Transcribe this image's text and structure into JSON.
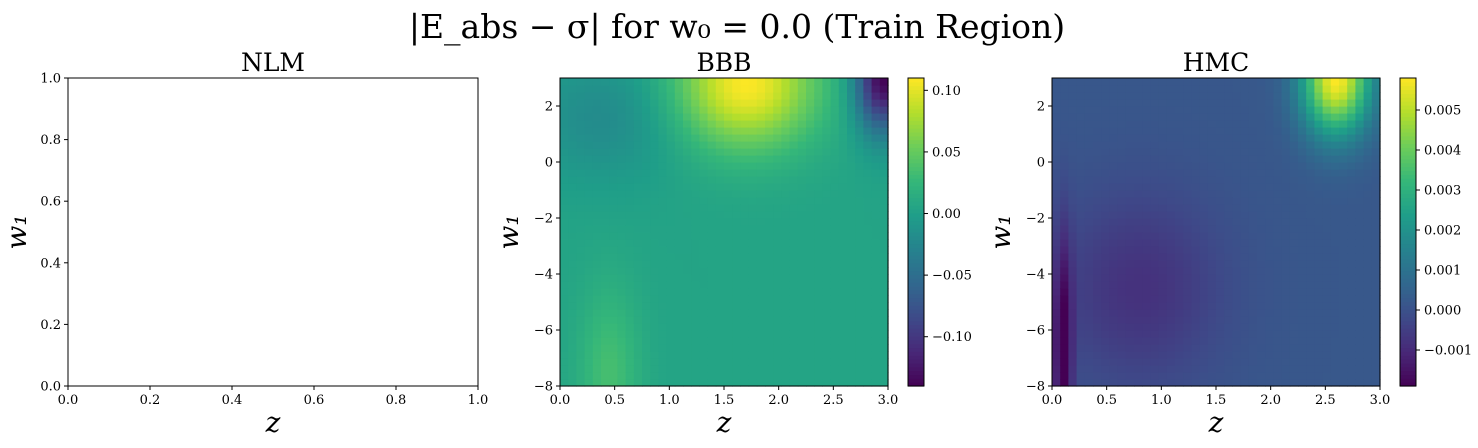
{
  "figure": {
    "title": "|E_abs − σ| for w₀ = 0.0 (Train Region)"
  },
  "chart_data": [
    {
      "type": "heatmap",
      "panel": "NLM",
      "title": "NLM",
      "xlabel": "z",
      "ylabel": "w₁",
      "xlim": [
        0.0,
        1.0
      ],
      "ylim": [
        0.0,
        1.0
      ],
      "xticks": [
        "0.0",
        "0.2",
        "0.4",
        "0.6",
        "0.8",
        "1.0"
      ],
      "yticks": [
        "0.0",
        "0.2",
        "0.4",
        "0.6",
        "0.8",
        "1.0"
      ],
      "empty": true,
      "colorbar": null
    },
    {
      "type": "heatmap",
      "panel": "BBB",
      "title": "BBB",
      "xlabel": "z",
      "ylabel": "w₁",
      "xlim": [
        0.0,
        3.0
      ],
      "ylim": [
        -8,
        3
      ],
      "xticks": [
        "0.0",
        "0.5",
        "1.0",
        "1.5",
        "2.0",
        "2.5",
        "3.0"
      ],
      "yticks": [
        "2",
        "0",
        "−2",
        "−4",
        "−6",
        "−8"
      ],
      "colormap": "viridis",
      "zrange": [
        -0.14,
        0.11
      ],
      "colorbar": {
        "ticks": [
          0.1,
          0.05,
          0.0,
          -0.05,
          -0.1
        ],
        "tick_labels": [
          "0.10",
          "0.05",
          "0.00",
          "−0.05",
          "−0.10"
        ]
      },
      "features": [
        {
          "x": 1.7,
          "y": 2.8,
          "value": 0.11,
          "sx": 0.45,
          "sy": 1.6
        },
        {
          "x": 2.95,
          "y": 3.0,
          "value": -0.14,
          "sx": 0.17,
          "sy": 1.3
        },
        {
          "x": 0.45,
          "y": -7.5,
          "value": 0.035,
          "sx": 0.2,
          "sy": 2.2
        },
        {
          "x": 0.4,
          "y": 1.6,
          "value": -0.02,
          "sx": 0.5,
          "sy": 1.6
        }
      ],
      "base_value": 0.005
    },
    {
      "type": "heatmap",
      "panel": "HMC",
      "title": "HMC",
      "xlabel": "z",
      "ylabel": "w₁",
      "xlim": [
        0.0,
        3.0
      ],
      "ylim": [
        -8,
        3
      ],
      "xticks": [
        "0.0",
        "0.5",
        "1.0",
        "1.5",
        "2.0",
        "2.5",
        "3.0"
      ],
      "yticks": [
        "2",
        "0",
        "−2",
        "−4",
        "−6",
        "−8"
      ],
      "colormap": "viridis",
      "zrange": [
        -0.0019,
        0.0058
      ],
      "colorbar": {
        "ticks": [
          0.005,
          0.004,
          0.003,
          0.002,
          0.001,
          0.0,
          -0.001
        ],
        "tick_labels": [
          "0.005",
          "0.004",
          "0.003",
          "0.002",
          "0.001",
          "0.000",
          "−0.001"
        ]
      },
      "features": [
        {
          "x": 2.6,
          "y": 3.0,
          "value": 0.0058,
          "sx": 0.22,
          "sy": 1.4
        },
        {
          "x": 0.1,
          "y": -7.0,
          "value": -0.0019,
          "sx": 0.06,
          "sy": 3.0
        },
        {
          "x": 0.8,
          "y": -4.5,
          "value": -0.0008,
          "sx": 0.55,
          "sy": 2.5
        }
      ],
      "base_value": 0.0002
    }
  ]
}
